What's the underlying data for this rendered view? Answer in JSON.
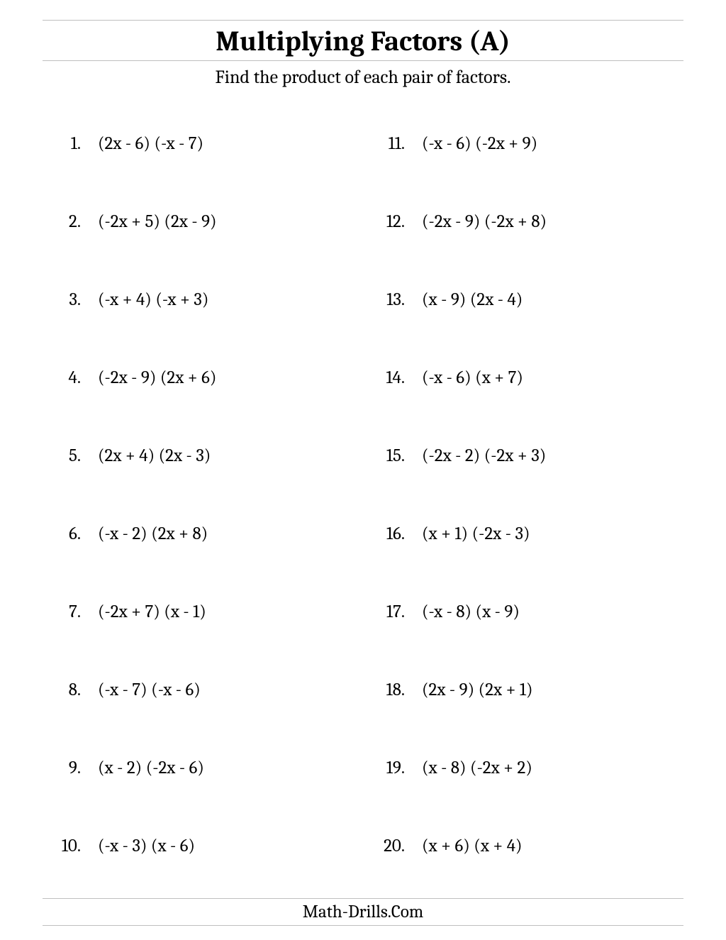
{
  "title": "Multiplying Factors (A)",
  "instructions": "Find the product of each pair of factors.",
  "footer": "Math-Drills.Com",
  "left": [
    {
      "n": "1.",
      "e": "(2x - 6) (-x - 7)"
    },
    {
      "n": "2.",
      "e": "(-2x + 5) (2x - 9)"
    },
    {
      "n": "3.",
      "e": "(-x + 4) (-x + 3)"
    },
    {
      "n": "4.",
      "e": "(-2x - 9) (2x + 6)"
    },
    {
      "n": "5.",
      "e": "(2x + 4) (2x - 3)"
    },
    {
      "n": "6.",
      "e": "(-x - 2) (2x + 8)"
    },
    {
      "n": "7.",
      "e": "(-2x + 7) (x - 1)"
    },
    {
      "n": "8.",
      "e": "(-x - 7) (-x - 6)"
    },
    {
      "n": "9.",
      "e": "(x - 2) (-2x - 6)"
    },
    {
      "n": "10.",
      "e": "(-x - 3) (x - 6)"
    }
  ],
  "right": [
    {
      "n": "11.",
      "e": "(-x - 6) (-2x + 9)"
    },
    {
      "n": "12.",
      "e": "(-2x - 9) (-2x + 8)"
    },
    {
      "n": "13.",
      "e": "(x - 9) (2x - 4)"
    },
    {
      "n": "14.",
      "e": "(-x - 6) (x + 7)"
    },
    {
      "n": "15.",
      "e": "(-2x - 2) (-2x + 3)"
    },
    {
      "n": "16.",
      "e": "(x + 1) (-2x - 3)"
    },
    {
      "n": "17.",
      "e": "(-x - 8) (x - 9)"
    },
    {
      "n": "18.",
      "e": "(2x - 9) (2x + 1)"
    },
    {
      "n": "19.",
      "e": "(x - 8) (-2x + 2)"
    },
    {
      "n": "20.",
      "e": "(x + 6) (x + 4)"
    }
  ]
}
